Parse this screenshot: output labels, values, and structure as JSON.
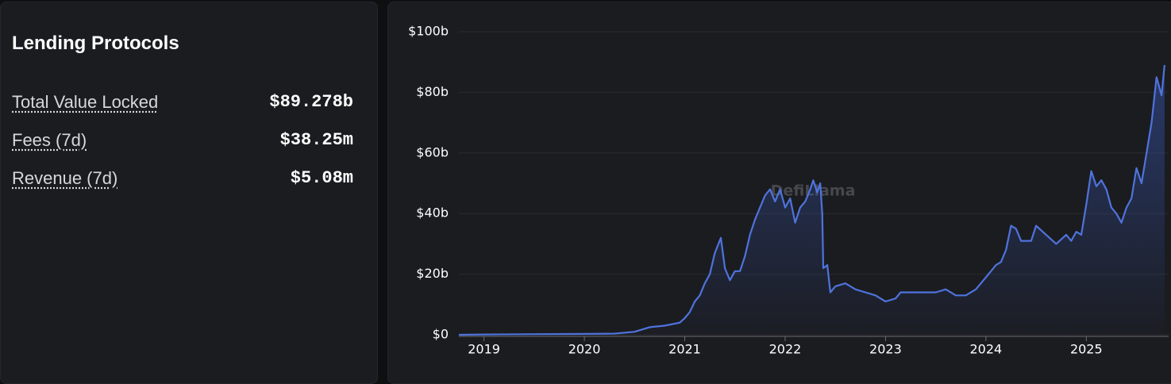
{
  "panel": {
    "title": "Lending Protocols",
    "stats": [
      {
        "label": "Total Value Locked",
        "value": "$89.278b"
      },
      {
        "label": "Fees (7d)",
        "value": "$38.25m"
      },
      {
        "label": "Revenue (7d)",
        "value": "$5.08m"
      }
    ]
  },
  "watermark": "DefiLlama",
  "chart_data": {
    "type": "area",
    "color": "#4f73dd",
    "grid": true,
    "xlim": [
      2018.75,
      2025.82
    ],
    "ylim": [
      0,
      100
    ],
    "xticks": [
      2019,
      2020,
      2021,
      2022,
      2023,
      2024,
      2025
    ],
    "yticks": [
      {
        "value": 0,
        "label": "$0"
      },
      {
        "value": 20,
        "label": "$20b"
      },
      {
        "value": 40,
        "label": "$40b"
      },
      {
        "value": 60,
        "label": "$60b"
      },
      {
        "value": 80,
        "label": "$80b"
      },
      {
        "value": 100,
        "label": "$100b"
      }
    ],
    "x": [
      2018.75,
      2019.0,
      2019.5,
      2020.0,
      2020.3,
      2020.5,
      2020.65,
      2020.8,
      2020.95,
      2021.0,
      2021.05,
      2021.1,
      2021.15,
      2021.2,
      2021.25,
      2021.3,
      2021.36,
      2021.4,
      2021.45,
      2021.5,
      2021.55,
      2021.6,
      2021.65,
      2021.7,
      2021.75,
      2021.8,
      2021.85,
      2021.9,
      2021.95,
      2022.0,
      2022.05,
      2022.1,
      2022.15,
      2022.2,
      2022.25,
      2022.28,
      2022.32,
      2022.35,
      2022.37,
      2022.38,
      2022.42,
      2022.45,
      2022.5,
      2022.6,
      2022.7,
      2022.8,
      2022.9,
      2023.0,
      2023.1,
      2023.15,
      2023.3,
      2023.5,
      2023.6,
      2023.7,
      2023.8,
      2023.9,
      2024.0,
      2024.05,
      2024.1,
      2024.15,
      2024.2,
      2024.25,
      2024.3,
      2024.35,
      2024.45,
      2024.5,
      2024.6,
      2024.7,
      2024.8,
      2024.85,
      2024.9,
      2024.95,
      2025.0,
      2025.05,
      2025.1,
      2025.15,
      2025.2,
      2025.25,
      2025.3,
      2025.35,
      2025.4,
      2025.45,
      2025.5,
      2025.55,
      2025.6,
      2025.65,
      2025.7,
      2025.75,
      2025.78
    ],
    "values": [
      0,
      0.1,
      0.2,
      0.3,
      0.4,
      1.0,
      2.5,
      3,
      4,
      5.5,
      7.5,
      11,
      13,
      17,
      20,
      27,
      32,
      22,
      18,
      21,
      21,
      26,
      33,
      38,
      42,
      46,
      48,
      44,
      48,
      42,
      45,
      37,
      42,
      44,
      48,
      51,
      47,
      50,
      40,
      22,
      23,
      14,
      16,
      17,
      15,
      14,
      13,
      11,
      12,
      14,
      14,
      14,
      15,
      13,
      13,
      15,
      19,
      21,
      23,
      24,
      28,
      36,
      35,
      31,
      31,
      36,
      33,
      30,
      33,
      31,
      34,
      33,
      43,
      54,
      49,
      51,
      48,
      42,
      40,
      37,
      42,
      45,
      55,
      50,
      60,
      70,
      85,
      79,
      89
    ]
  }
}
